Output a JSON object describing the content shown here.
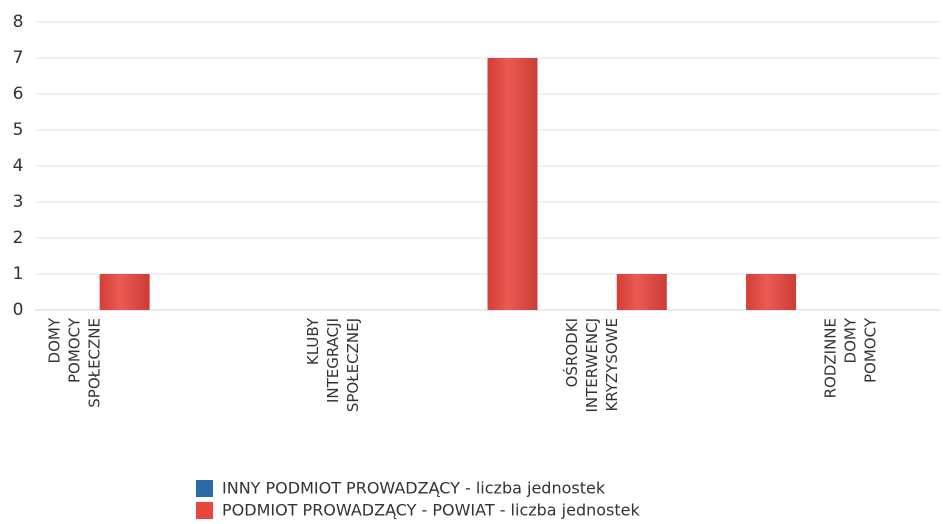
{
  "chart_data": {
    "type": "bar",
    "categories": [
      "DOMY POMOCY SPOŁECZNE",
      null,
      "KLUBY INTEGRACJI SPOŁECZNEJ",
      null,
      "OŚRODKI INTERWENCJ KRYZYSOWE",
      null,
      "RODZINNE DOMY POMOCY"
    ],
    "series": [
      {
        "name": "INNY PODMIOT PROWADZĄCY - liczba jednostek",
        "color": "#2b6aa3",
        "values": [
          0,
          0,
          0,
          0,
          0,
          0,
          0
        ]
      },
      {
        "name": "PODMIOT PROWADZĄCY - POWIAT - liczba jednostek",
        "color": "#e8453c",
        "values": [
          1,
          0,
          0,
          7,
          1,
          1,
          0
        ]
      }
    ],
    "ylim": [
      0,
      8
    ],
    "yticks": [
      0,
      1,
      2,
      3,
      4,
      5,
      6,
      7,
      8
    ],
    "grid": true
  }
}
